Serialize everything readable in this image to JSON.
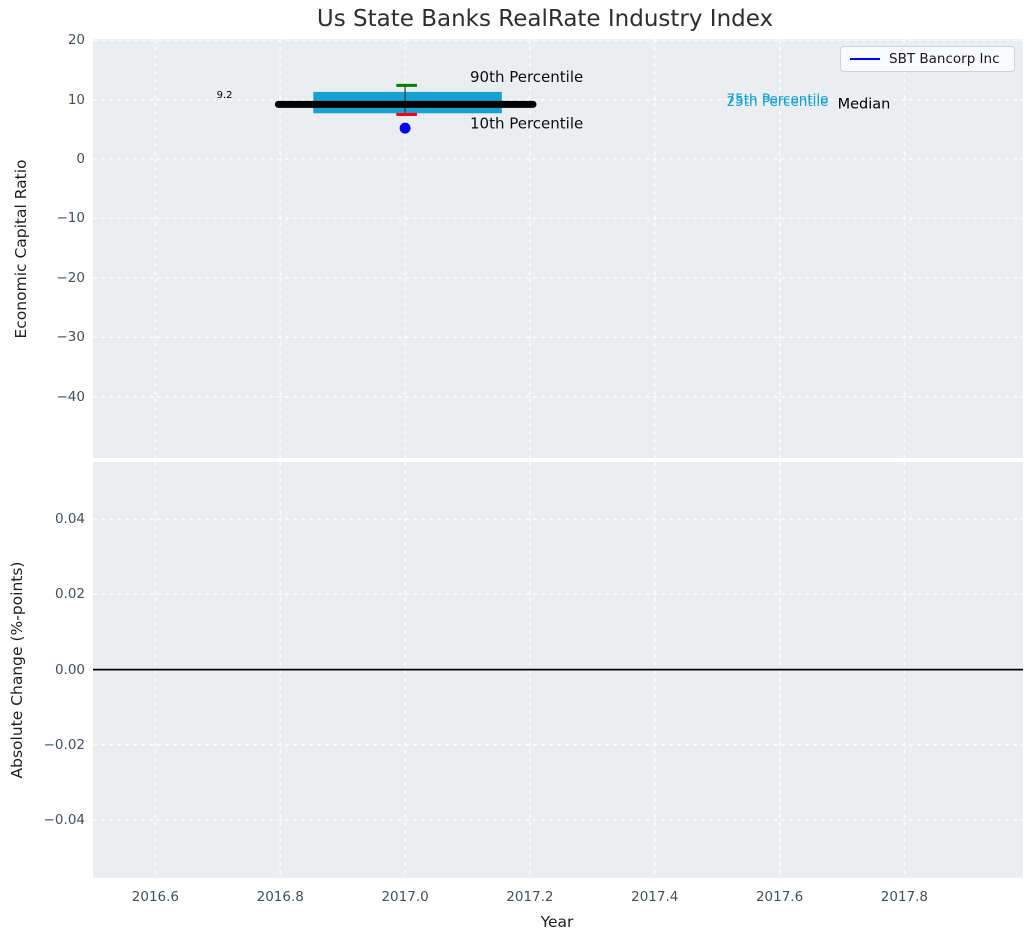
{
  "figure": {
    "title": "Us State Banks RealRate Industry Index"
  },
  "chart_data": [
    {
      "id": "economic-capital-ratio-panel",
      "type": "boxplot",
      "title": "Us State Banks RealRate Industry Index",
      "ylabel": "Economic Capital Ratio",
      "xlim": [
        2016.5,
        2017.99
      ],
      "ylim": [
        -50.3,
        20.2
      ],
      "yticks": [
        20,
        10,
        0,
        -10,
        -20,
        -30,
        -40
      ],
      "ytick_labels": [
        "20",
        "10",
        "0",
        "−10",
        "−20",
        "−30",
        "−40"
      ],
      "grid": true,
      "legend": {
        "position": "upper right",
        "entries": [
          {
            "label": "SBT Bancorp Inc",
            "color": "#0000ff"
          }
        ]
      },
      "box": {
        "x": 2017.0,
        "median": 9.2,
        "median_span": [
          2016.797,
          2017.205
        ],
        "q1": 7.7,
        "q3": 11.3,
        "box_span": [
          2016.853,
          2017.155
        ],
        "p90": 12.4,
        "p10": 7.5,
        "cap_span": [
          2016.986,
          2017.019
        ],
        "colors": {
          "median": "#000000",
          "box": "#16a1d4",
          "p90_cap": "#008000",
          "p10_cap": "#ff0000",
          "whisker": "#3a3a3a"
        }
      },
      "series": [
        {
          "name": "SBT Bancorp Inc",
          "x": [
            2017.0
          ],
          "y": [
            5.2
          ],
          "marker": "circle",
          "color": "#0000ff"
        }
      ],
      "annotations": [
        {
          "text": "9.2",
          "x": 2016.698,
          "y": 10.7,
          "color": "#000000",
          "size": 10
        },
        {
          "text": "90th Percentile",
          "x": 2017.104,
          "y": 13.8,
          "color": "#0d0d0d",
          "size": 15
        },
        {
          "text": "10th Percentile",
          "x": 2017.104,
          "y": 6.0,
          "color": "#0d0d0d",
          "size": 15
        },
        {
          "text": "75th Percentile",
          "x": 2017.515,
          "y": 10.0,
          "color": "#16a1d4",
          "size": 13.5
        },
        {
          "text": "25th Percentile",
          "x": 2017.515,
          "y": 9.6,
          "color": "#16a1d4",
          "size": 13.5
        },
        {
          "text": "Median",
          "x": 2017.693,
          "y": 9.2,
          "color": "#000000",
          "size": 14.5
        }
      ]
    },
    {
      "id": "absolute-change-panel",
      "type": "line",
      "ylabel": "Absolute Change (%-points)",
      "xlabel": "Year",
      "xlim": [
        2016.5,
        2017.99
      ],
      "ylim": [
        -0.0554,
        0.0552
      ],
      "yticks": [
        0.04,
        0.02,
        0.0,
        -0.02,
        -0.04
      ],
      "ytick_labels": [
        "0.04",
        "0.02",
        "0.00",
        "−0.02",
        "−0.04"
      ],
      "xticks": [
        2016.6,
        2016.8,
        2017.0,
        2017.2,
        2017.4,
        2017.6,
        2017.8
      ],
      "xtick_labels": [
        "2016.6",
        "2016.8",
        "2017.0",
        "2017.2",
        "2017.4",
        "2017.6",
        "2017.8"
      ],
      "zero_line": {
        "y": 0.0,
        "color": "#000000"
      },
      "grid": true
    }
  ]
}
